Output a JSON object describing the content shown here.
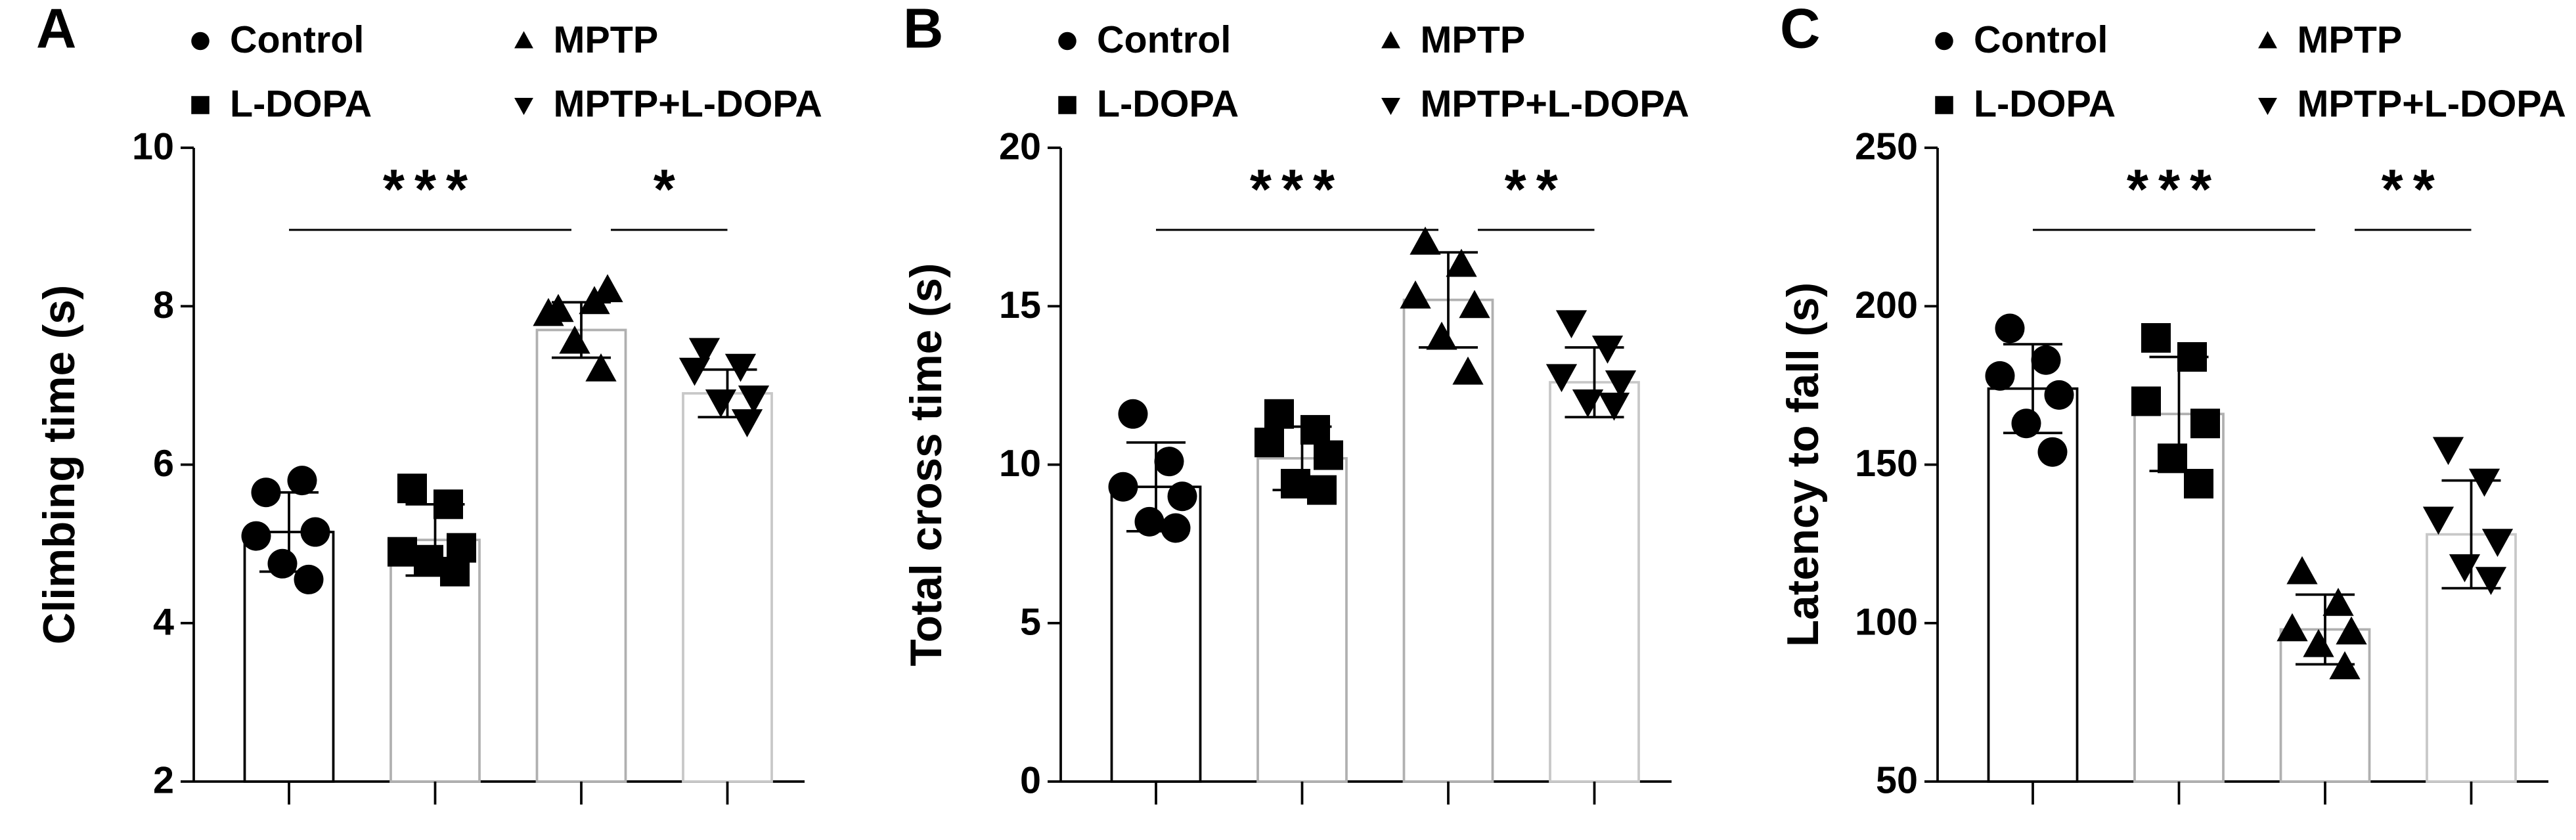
{
  "chart_data": [
    {
      "type": "bar",
      "panel": "A",
      "ylabel": "Climbing time (s)",
      "ylim": [
        2,
        10
      ],
      "yticks": [
        2,
        4,
        6,
        8,
        10
      ],
      "series": [
        {
          "name": "Control",
          "marker": "circle",
          "color": "#000000",
          "value": 5.15,
          "error": 0.5,
          "points": [
            5.65,
            5.8,
            5.1,
            5.15,
            4.75,
            4.55
          ]
        },
        {
          "name": "L-DOPA",
          "marker": "square",
          "color": "#b0b0b0",
          "value": 5.05,
          "error": 0.45,
          "points": [
            5.7,
            5.5,
            4.9,
            4.95,
            4.8,
            4.65
          ]
        },
        {
          "name": "MPTP",
          "marker": "triangle-up",
          "color": "#b0b0b0",
          "value": 7.7,
          "error": 0.35,
          "points": [
            7.95,
            8.05,
            7.9,
            8.2,
            7.55,
            7.2
          ]
        },
        {
          "name": "MPTP+L-DOPA",
          "marker": "triangle-down",
          "color": "#c8c8c8",
          "value": 6.9,
          "error": 0.3,
          "points": [
            7.45,
            7.25,
            7.2,
            6.85,
            6.8,
            6.55
          ]
        }
      ],
      "annotations": [
        {
          "text": "***"
        },
        {
          "text": "*"
        }
      ]
    },
    {
      "type": "bar",
      "panel": "B",
      "ylabel": "Total cross time (s)",
      "ylim": [
        0,
        20
      ],
      "yticks": [
        0,
        5,
        10,
        15,
        20
      ],
      "series": [
        {
          "name": "Control",
          "marker": "circle",
          "color": "#000000",
          "value": 9.3,
          "error": 1.4,
          "points": [
            11.6,
            10.1,
            9.3,
            9.0,
            8.2,
            8.0
          ]
        },
        {
          "name": "L-DOPA",
          "marker": "square",
          "color": "#b0b0b0",
          "value": 10.2,
          "error": 1.0,
          "points": [
            11.6,
            11.1,
            10.7,
            10.3,
            9.4,
            9.2
          ]
        },
        {
          "name": "MPTP",
          "marker": "triangle-up",
          "color": "#b0b0b0",
          "value": 15.2,
          "error": 1.5,
          "points": [
            17.0,
            16.3,
            15.3,
            15.0,
            14.0,
            12.9
          ]
        },
        {
          "name": "MPTP+L-DOPA",
          "marker": "triangle-down",
          "color": "#c8c8c8",
          "value": 12.6,
          "error": 1.1,
          "points": [
            14.5,
            13.7,
            12.8,
            12.6,
            12.0,
            11.9
          ]
        }
      ],
      "annotations": [
        {
          "text": "***"
        },
        {
          "text": "**"
        }
      ]
    },
    {
      "type": "bar",
      "panel": "C",
      "ylabel": "Latency to fall (s)",
      "ylim": [
        50,
        250
      ],
      "yticks": [
        50,
        100,
        150,
        200,
        250
      ],
      "series": [
        {
          "name": "Control",
          "marker": "circle",
          "color": "#000000",
          "value": 174,
          "error": 14,
          "points": [
            193,
            183,
            178,
            172,
            163,
            154
          ]
        },
        {
          "name": "L-DOPA",
          "marker": "square",
          "color": "#b0b0b0",
          "value": 166,
          "error": 18,
          "points": [
            190,
            184,
            170,
            163,
            152,
            144
          ]
        },
        {
          "name": "MPTP",
          "marker": "triangle-up",
          "color": "#b0b0b0",
          "value": 98,
          "error": 11,
          "points": [
            116,
            106,
            98,
            97,
            93,
            86
          ]
        },
        {
          "name": "MPTP+L-DOPA",
          "marker": "triangle-down",
          "color": "#c8c8c8",
          "value": 128,
          "error": 17,
          "points": [
            155,
            145,
            133,
            126,
            118,
            114
          ]
        }
      ],
      "annotations": [
        {
          "text": "***"
        },
        {
          "text": "**"
        }
      ]
    }
  ]
}
